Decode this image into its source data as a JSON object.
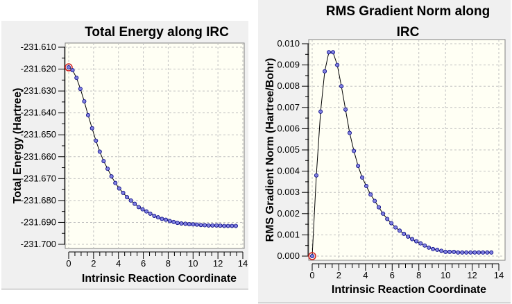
{
  "chart_data": [
    {
      "type": "line",
      "title": [
        "Total Energy along IRC"
      ],
      "xlabel": "Intrinsic Reaction Coordinate",
      "ylabel": "Total Energy (Hartree)",
      "xlim": [
        0,
        14
      ],
      "ylim": [
        -231.7,
        -231.61
      ],
      "xticks": [
        "0",
        "2",
        "4",
        "6",
        "8",
        "10",
        "12",
        "14"
      ],
      "yticks": [
        "-231.610",
        "-231.620",
        "-231.630",
        "-231.640",
        "-231.650",
        "-231.660",
        "-231.670",
        "-231.680",
        "-231.690",
        "-231.700"
      ],
      "grid": true,
      "highlight_index": 0,
      "line_color": "#000000",
      "marker_color": "#8080e0",
      "highlight_color": "#d02020",
      "x": [
        0,
        0.31,
        0.63,
        0.94,
        1.25,
        1.56,
        1.88,
        2.19,
        2.5,
        2.81,
        3.13,
        3.44,
        3.75,
        4.06,
        4.38,
        4.69,
        5.0,
        5.31,
        5.63,
        5.94,
        6.25,
        6.56,
        6.88,
        7.19,
        7.5,
        7.81,
        8.13,
        8.44,
        8.75,
        9.06,
        9.38,
        9.69,
        10.0,
        10.31,
        10.63,
        10.94,
        11.25,
        11.56,
        11.88,
        12.19,
        12.5,
        12.81,
        13.13,
        13.44
      ],
      "y": [
        -231.6192,
        -231.6205,
        -231.624,
        -231.629,
        -231.6347,
        -231.641,
        -231.647,
        -231.6527,
        -231.6577,
        -231.662,
        -231.6655,
        -231.669,
        -231.672,
        -231.6745,
        -231.6765,
        -231.6785,
        -231.68,
        -231.6815,
        -231.683,
        -231.684,
        -231.685,
        -231.686,
        -231.687,
        -231.6877,
        -231.6884,
        -231.6888,
        -231.6894,
        -231.6898,
        -231.6902,
        -231.6905,
        -231.6906,
        -231.6908,
        -231.6909,
        -231.691,
        -231.6912,
        -231.6913,
        -231.6914,
        -231.6914,
        -231.6914,
        -231.6915,
        -231.6916,
        -231.6916,
        -231.6916,
        -231.6916
      ]
    },
    {
      "type": "line",
      "title": [
        "RMS Gradient Norm along",
        "IRC"
      ],
      "xlabel": "Intrinsic Reaction Coordinate",
      "ylabel": "RMS Gradient Norm (Hartree/Bohr)",
      "xlim": [
        0,
        14
      ],
      "ylim": [
        0.0,
        0.01
      ],
      "xticks": [
        "0",
        "2",
        "4",
        "6",
        "8",
        "10",
        "12",
        "14"
      ],
      "yticks": [
        "0.010",
        "0.009",
        "0.008",
        "0.007",
        "0.006",
        "0.005",
        "0.004",
        "0.003",
        "0.002",
        "0.001",
        "0.000"
      ],
      "grid": true,
      "highlight_index": 0,
      "line_color": "#000000",
      "marker_color": "#8080e0",
      "highlight_color": "#d02020",
      "x": [
        0,
        0.31,
        0.63,
        0.94,
        1.25,
        1.56,
        1.88,
        2.19,
        2.5,
        2.81,
        3.13,
        3.44,
        3.75,
        4.06,
        4.38,
        4.69,
        5.0,
        5.31,
        5.63,
        5.94,
        6.25,
        6.56,
        6.88,
        7.19,
        7.5,
        7.81,
        8.13,
        8.44,
        8.75,
        9.06,
        9.38,
        9.69,
        10.0,
        10.31,
        10.63,
        10.94,
        11.25,
        11.56,
        11.88,
        12.19,
        12.5,
        12.81,
        13.13,
        13.44
      ],
      "y": [
        0.0,
        0.0038,
        0.0068,
        0.0087,
        0.0096,
        0.0096,
        0.009,
        0.008,
        0.0069,
        0.0058,
        0.00495,
        0.00425,
        0.0037,
        0.0033,
        0.0029,
        0.0026,
        0.0023,
        0.002,
        0.00175,
        0.00155,
        0.00135,
        0.0012,
        0.00105,
        0.00092,
        0.0008,
        0.0007,
        0.0006,
        0.0005,
        0.0004,
        0.00033,
        0.0003,
        0.00025,
        0.0002,
        0.0002,
        0.0002,
        0.00017,
        0.00017,
        0.00017,
        0.00017,
        0.00017,
        0.00017,
        0.00017,
        0.00017,
        0.00017
      ]
    }
  ]
}
